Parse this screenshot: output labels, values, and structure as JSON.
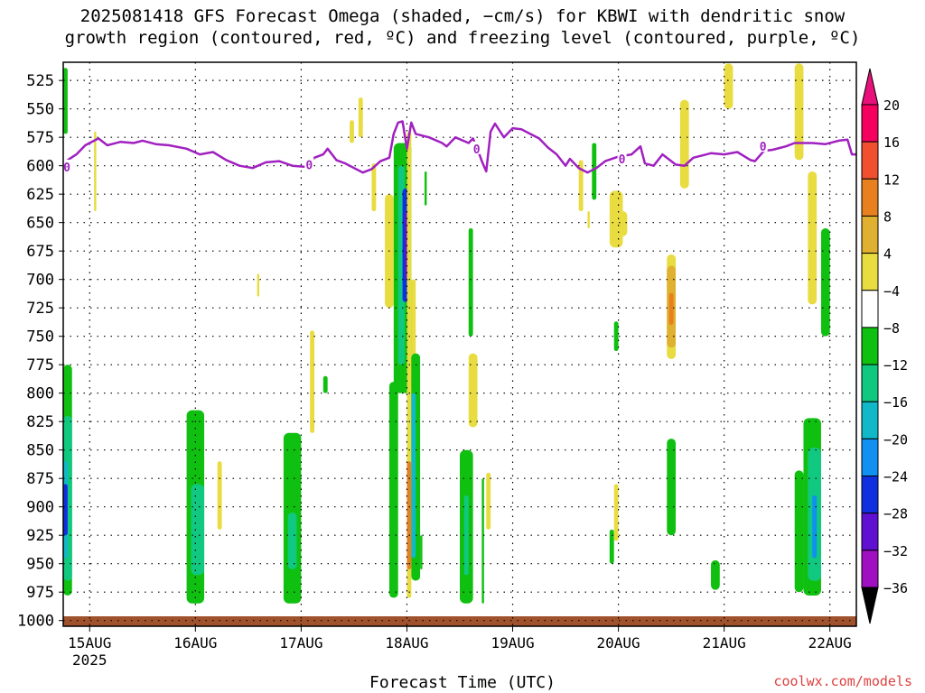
{
  "title_lines": [
    "2025081418 GFS Forecast Omega (shaded, −cm/s) for KBWI with dendritic snow",
    "growth region (contoured, red, ºC) and freezing level (contoured, purple, ºC)"
  ],
  "credit": "coolwx.com/models",
  "chart_data": {
    "type": "heatmap",
    "xlabel": "Forecast Time (UTC)",
    "x_start": "2025-08-14T18:00Z",
    "x_end": "2025-08-22T06:00Z",
    "x_ticks": [
      {
        "time": "2025-08-15T00:00Z",
        "label": "15AUG",
        "sublabel": "2025"
      },
      {
        "time": "2025-08-16T00:00Z",
        "label": "16AUG",
        "sublabel": ""
      },
      {
        "time": "2025-08-17T00:00Z",
        "label": "17AUG",
        "sublabel": ""
      },
      {
        "time": "2025-08-18T00:00Z",
        "label": "18AUG",
        "sublabel": ""
      },
      {
        "time": "2025-08-19T00:00Z",
        "label": "19AUG",
        "sublabel": ""
      },
      {
        "time": "2025-08-20T00:00Z",
        "label": "20AUG",
        "sublabel": ""
      },
      {
        "time": "2025-08-21T00:00Z",
        "label": "21AUG",
        "sublabel": ""
      },
      {
        "time": "2025-08-22T00:00Z",
        "label": "22AUG",
        "sublabel": ""
      }
    ],
    "y_ticks": [
      "525",
      "550",
      "575",
      "600",
      "625",
      "650",
      "675",
      "700",
      "725",
      "750",
      "775",
      "800",
      "825",
      "850",
      "875",
      "900",
      "925",
      "950",
      "975",
      "1000"
    ],
    "ylim_hpa": [
      509,
      1005
    ],
    "y_reversed": true,
    "grid": true,
    "colorbar": {
      "labels": [
        "20",
        "16",
        "12",
        "8",
        "4",
        "−4",
        "−8",
        "−12",
        "−16",
        "−20",
        "−24",
        "−28",
        "−32",
        "−36"
      ],
      "colors": [
        "#f60060",
        "#f05030",
        "#e88020",
        "#e0b030",
        "#e8dc40",
        "#ffffff",
        "#10c010",
        "#10c880",
        "#10b8c8",
        "#1090f0",
        "#1030e0",
        "#6010d0",
        "#a010c0",
        "#a8a8a8"
      ],
      "top_arrow_color": "#e8107a",
      "bottom_arrow_color": "#000000"
    },
    "freezing_level": {
      "name": "0",
      "color": "#a020c0",
      "points": [
        [
          "2025-08-14T18:00Z",
          601
        ],
        [
          "2025-08-14T19:00Z",
          595
        ],
        [
          "2025-08-14T21:00Z",
          590
        ],
        [
          "2025-08-14T23:00Z",
          582
        ],
        [
          "2025-08-15T02:00Z",
          576
        ],
        [
          "2025-08-15T04:00Z",
          582
        ],
        [
          "2025-08-15T07:00Z",
          579
        ],
        [
          "2025-08-15T10:00Z",
          580
        ],
        [
          "2025-08-15T12:00Z",
          578
        ],
        [
          "2025-08-15T15:00Z",
          581
        ],
        [
          "2025-08-15T18:00Z",
          582
        ],
        [
          "2025-08-15T22:00Z",
          585
        ],
        [
          "2025-08-16T01:00Z",
          590
        ],
        [
          "2025-08-16T04:00Z",
          588
        ],
        [
          "2025-08-16T07:00Z",
          595
        ],
        [
          "2025-08-16T10:00Z",
          600
        ],
        [
          "2025-08-16T13:00Z",
          602
        ],
        [
          "2025-08-16T16:00Z",
          597
        ],
        [
          "2025-08-16T19:00Z",
          596
        ],
        [
          "2025-08-16T22:00Z",
          600
        ],
        [
          "2025-08-17T01:00Z",
          601
        ],
        [
          "2025-08-17T03:00Z",
          593
        ],
        [
          "2025-08-17T05:00Z",
          590
        ],
        [
          "2025-08-17T06:00Z",
          585
        ],
        [
          "2025-08-17T08:00Z",
          595
        ],
        [
          "2025-08-17T10:00Z",
          598
        ],
        [
          "2025-08-17T12:00Z",
          602
        ],
        [
          "2025-08-17T14:00Z",
          606
        ],
        [
          "2025-08-17T16:00Z",
          603
        ],
        [
          "2025-08-17T18:00Z",
          596
        ],
        [
          "2025-08-17T20:00Z",
          593
        ],
        [
          "2025-08-17T21:00Z",
          572
        ],
        [
          "2025-08-17T22:00Z",
          562
        ],
        [
          "2025-08-17T23:00Z",
          561
        ],
        [
          "2025-08-18T00:00Z",
          585
        ],
        [
          "2025-08-18T01:00Z",
          562
        ],
        [
          "2025-08-18T02:00Z",
          572
        ],
        [
          "2025-08-18T05:00Z",
          575
        ],
        [
          "2025-08-18T08:00Z",
          580
        ],
        [
          "2025-08-18T09:00Z",
          583
        ],
        [
          "2025-08-18T11:00Z",
          575
        ],
        [
          "2025-08-18T14:00Z",
          580
        ],
        [
          "2025-08-18T15:00Z",
          576
        ],
        [
          "2025-08-18T16:00Z",
          585
        ],
        [
          "2025-08-18T17:00Z",
          596
        ],
        [
          "2025-08-18T18:00Z",
          605
        ],
        [
          "2025-08-18T19:00Z",
          570
        ],
        [
          "2025-08-18T20:00Z",
          563
        ],
        [
          "2025-08-18T22:00Z",
          575
        ],
        [
          "2025-08-19T00:00Z",
          567
        ],
        [
          "2025-08-19T02:00Z",
          568
        ],
        [
          "2025-08-19T04:00Z",
          572
        ],
        [
          "2025-08-19T06:00Z",
          576
        ],
        [
          "2025-08-19T08:00Z",
          584
        ],
        [
          "2025-08-19T10:00Z",
          590
        ],
        [
          "2025-08-19T12:00Z",
          600
        ],
        [
          "2025-08-19T13:00Z",
          594
        ],
        [
          "2025-08-19T15:00Z",
          602
        ],
        [
          "2025-08-19T17:00Z",
          606
        ],
        [
          "2025-08-19T19:00Z",
          602
        ],
        [
          "2025-08-19T21:00Z",
          596
        ],
        [
          "2025-08-20T00:00Z",
          592
        ],
        [
          "2025-08-20T03:00Z",
          590
        ],
        [
          "2025-08-20T05:00Z",
          583
        ],
        [
          "2025-08-20T06:00Z",
          598
        ],
        [
          "2025-08-20T08:00Z",
          600
        ],
        [
          "2025-08-20T10:00Z",
          590
        ],
        [
          "2025-08-20T13:00Z",
          599
        ],
        [
          "2025-08-20T15:00Z",
          600
        ],
        [
          "2025-08-20T17:00Z",
          593
        ],
        [
          "2025-08-20T19:00Z",
          591
        ],
        [
          "2025-08-20T21:00Z",
          589
        ],
        [
          "2025-08-21T00:00Z",
          590
        ],
        [
          "2025-08-21T03:00Z",
          588
        ],
        [
          "2025-08-21T06:00Z",
          595
        ],
        [
          "2025-08-21T07:00Z",
          596
        ],
        [
          "2025-08-21T09:00Z",
          587
        ],
        [
          "2025-08-21T11:00Z",
          586
        ],
        [
          "2025-08-21T14:00Z",
          583
        ],
        [
          "2025-08-21T16:00Z",
          580
        ],
        [
          "2025-08-21T20:00Z",
          580
        ],
        [
          "2025-08-21T23:00Z",
          581
        ],
        [
          "2025-08-22T02:00Z",
          578
        ],
        [
          "2025-08-22T04:00Z",
          577
        ],
        [
          "2025-08-22T05:00Z",
          590
        ],
        [
          "2025-08-22T06:00Z",
          590
        ]
      ],
      "labels": [
        [
          "2025-08-14T18:00Z",
          601
        ],
        [
          "2025-08-17T01:00Z",
          599
        ],
        [
          "2025-08-18T15:00Z",
          585
        ],
        [
          "2025-08-20T00:00Z",
          594
        ],
        [
          "2025-08-21T08:00Z",
          583
        ]
      ]
    },
    "omega_cells": [
      {
        "t0": "2025-08-14T18:00Z",
        "t1": "2025-08-14T19:00Z",
        "p0": 514,
        "p1": 572,
        "c": "#10c010"
      },
      {
        "t0": "2025-08-14T18:00Z",
        "t1": "2025-08-14T20:00Z",
        "p0": 775,
        "p1": 978,
        "c": "#10c010"
      },
      {
        "t0": "2025-08-14T18:00Z",
        "t1": "2025-08-14T20:00Z",
        "p0": 820,
        "p1": 965,
        "c": "#10c880"
      },
      {
        "t0": "2025-08-14T18:00Z",
        "t1": "2025-08-14T19:00Z",
        "p0": 860,
        "p1": 945,
        "c": "#10b8c8"
      },
      {
        "t0": "2025-08-14T18:00Z",
        "t1": "2025-08-14T19:00Z",
        "p0": 880,
        "p1": 925,
        "c": "#1030e0"
      },
      {
        "t0": "2025-08-15T01:00Z",
        "t1": "2025-08-15T01:30Z",
        "p0": 570,
        "p1": 640,
        "c": "#e8dc40"
      },
      {
        "t0": "2025-08-15T22:00Z",
        "t1": "2025-08-16T02:00Z",
        "p0": 815,
        "p1": 985,
        "c": "#10c010"
      },
      {
        "t0": "2025-08-15T23:00Z",
        "t1": "2025-08-16T02:00Z",
        "p0": 880,
        "p1": 960,
        "c": "#10c880"
      },
      {
        "t0": "2025-08-16T05:00Z",
        "t1": "2025-08-16T06:00Z",
        "p0": 860,
        "p1": 920,
        "c": "#e8dc40"
      },
      {
        "t0": "2025-08-16T14:00Z",
        "t1": "2025-08-16T14:30Z",
        "p0": 695,
        "p1": 715,
        "c": "#e8dc40"
      },
      {
        "t0": "2025-08-16T20:00Z",
        "t1": "2025-08-17T00:00Z",
        "p0": 835,
        "p1": 985,
        "c": "#10c010"
      },
      {
        "t0": "2025-08-16T21:00Z",
        "t1": "2025-08-16T23:00Z",
        "p0": 905,
        "p1": 955,
        "c": "#10c880"
      },
      {
        "t0": "2025-08-17T02:00Z",
        "t1": "2025-08-17T03:00Z",
        "p0": 745,
        "p1": 835,
        "c": "#e8dc40"
      },
      {
        "t0": "2025-08-17T05:00Z",
        "t1": "2025-08-17T06:00Z",
        "p0": 785,
        "p1": 800,
        "c": "#10c010"
      },
      {
        "t0": "2025-08-17T11:00Z",
        "t1": "2025-08-17T12:00Z",
        "p0": 560,
        "p1": 580,
        "c": "#e8dc40"
      },
      {
        "t0": "2025-08-17T13:00Z",
        "t1": "2025-08-17T14:00Z",
        "p0": 540,
        "p1": 575,
        "c": "#e8dc40"
      },
      {
        "t0": "2025-08-17T16:00Z",
        "t1": "2025-08-17T17:00Z",
        "p0": 598,
        "p1": 640,
        "c": "#e8dc40"
      },
      {
        "t0": "2025-08-17T19:00Z",
        "t1": "2025-08-17T21:00Z",
        "p0": 625,
        "p1": 725,
        "c": "#e8dc40"
      },
      {
        "t0": "2025-08-17T20:00Z",
        "t1": "2025-08-17T22:00Z",
        "p0": 790,
        "p1": 980,
        "c": "#10c010"
      },
      {
        "t0": "2025-08-17T21:00Z",
        "t1": "2025-08-18T01:00Z",
        "p0": 580,
        "p1": 800,
        "c": "#10c010"
      },
      {
        "t0": "2025-08-17T22:00Z",
        "t1": "2025-08-17T23:30Z",
        "p0": 600,
        "p1": 775,
        "c": "#10c880"
      },
      {
        "t0": "2025-08-17T23:00Z",
        "t1": "2025-08-18T00:30Z",
        "p0": 620,
        "p1": 720,
        "c": "#1030e0"
      },
      {
        "t0": "2025-08-17T23:30Z",
        "t1": "2025-08-18T00:30Z",
        "p0": 640,
        "p1": 700,
        "c": "#6010d0"
      },
      {
        "t0": "2025-08-18T00:00Z",
        "t1": "2025-08-18T01:00Z",
        "p0": 570,
        "p1": 980,
        "c": "#e8dc40"
      },
      {
        "t0": "2025-08-18T00:00Z",
        "t1": "2025-08-18T01:00Z",
        "p0": 860,
        "p1": 955,
        "c": "#e88020"
      },
      {
        "t0": "2025-08-18T01:00Z",
        "t1": "2025-08-18T02:00Z",
        "p0": 700,
        "p1": 880,
        "c": "#e8dc40"
      },
      {
        "t0": "2025-08-18T01:00Z",
        "t1": "2025-08-18T03:00Z",
        "p0": 765,
        "p1": 965,
        "c": "#10c010"
      },
      {
        "t0": "2025-08-18T01:00Z",
        "t1": "2025-08-18T02:00Z",
        "p0": 800,
        "p1": 945,
        "c": "#10b8c8"
      },
      {
        "t0": "2025-08-18T03:00Z",
        "t1": "2025-08-18T03:30Z",
        "p0": 925,
        "p1": 955,
        "c": "#10c010"
      },
      {
        "t0": "2025-08-18T04:00Z",
        "t1": "2025-08-18T04:30Z",
        "p0": 605,
        "p1": 635,
        "c": "#10c010"
      },
      {
        "t0": "2025-08-18T12:00Z",
        "t1": "2025-08-18T15:00Z",
        "p0": 850,
        "p1": 985,
        "c": "#10c010"
      },
      {
        "t0": "2025-08-18T13:00Z",
        "t1": "2025-08-18T14:00Z",
        "p0": 890,
        "p1": 960,
        "c": "#10c880"
      },
      {
        "t0": "2025-08-18T14:00Z",
        "t1": "2025-08-18T15:00Z",
        "p0": 655,
        "p1": 750,
        "c": "#10c010"
      },
      {
        "t0": "2025-08-18T14:00Z",
        "t1": "2025-08-18T16:00Z",
        "p0": 765,
        "p1": 830,
        "c": "#e8dc40"
      },
      {
        "t0": "2025-08-18T17:00Z",
        "t1": "2025-08-18T17:30Z",
        "p0": 875,
        "p1": 985,
        "c": "#10c010"
      },
      {
        "t0": "2025-08-18T18:00Z",
        "t1": "2025-08-18T19:00Z",
        "p0": 870,
        "p1": 920,
        "c": "#e8dc40"
      },
      {
        "t0": "2025-08-19T15:00Z",
        "t1": "2025-08-19T16:00Z",
        "p0": 595,
        "p1": 640,
        "c": "#e8dc40"
      },
      {
        "t0": "2025-08-19T17:00Z",
        "t1": "2025-08-19T17:30Z",
        "p0": 640,
        "p1": 655,
        "c": "#e8dc40"
      },
      {
        "t0": "2025-08-19T18:00Z",
        "t1": "2025-08-19T19:00Z",
        "p0": 580,
        "p1": 630,
        "c": "#10c010"
      },
      {
        "t0": "2025-08-19T22:00Z",
        "t1": "2025-08-20T01:00Z",
        "p0": 622,
        "p1": 672,
        "c": "#e8dc40"
      },
      {
        "t0": "2025-08-20T00:00Z",
        "t1": "2025-08-20T02:00Z",
        "p0": 640,
        "p1": 662,
        "c": "#e8dc40"
      },
      {
        "t0": "2025-08-19T22:00Z",
        "t1": "2025-08-19T23:00Z",
        "p0": 920,
        "p1": 950,
        "c": "#10c010"
      },
      {
        "t0": "2025-08-19T23:00Z",
        "t1": "2025-08-20T00:00Z",
        "p0": 880,
        "p1": 930,
        "c": "#e8dc40"
      },
      {
        "t0": "2025-08-19T23:00Z",
        "t1": "2025-08-20T00:00Z",
        "p0": 737,
        "p1": 763,
        "c": "#10c010"
      },
      {
        "t0": "2025-08-20T11:00Z",
        "t1": "2025-08-20T13:00Z",
        "p0": 678,
        "p1": 770,
        "c": "#e8dc40"
      },
      {
        "t0": "2025-08-20T11:00Z",
        "t1": "2025-08-20T13:00Z",
        "p0": 688,
        "p1": 760,
        "c": "#e0b030"
      },
      {
        "t0": "2025-08-20T11:30Z",
        "t1": "2025-08-20T12:30Z",
        "p0": 712,
        "p1": 740,
        "c": "#e88020"
      },
      {
        "t0": "2025-08-20T11:00Z",
        "t1": "2025-08-20T13:00Z",
        "p0": 840,
        "p1": 925,
        "c": "#10c010"
      },
      {
        "t0": "2025-08-20T14:00Z",
        "t1": "2025-08-20T16:00Z",
        "p0": 542,
        "p1": 620,
        "c": "#e8dc40"
      },
      {
        "t0": "2025-08-20T21:00Z",
        "t1": "2025-08-20T23:00Z",
        "p0": 947,
        "p1": 973,
        "c": "#10c010"
      },
      {
        "t0": "2025-08-21T00:00Z",
        "t1": "2025-08-21T02:00Z",
        "p0": 510,
        "p1": 550,
        "c": "#e8dc40"
      },
      {
        "t0": "2025-08-21T16:00Z",
        "t1": "2025-08-21T18:00Z",
        "p0": 510,
        "p1": 595,
        "c": "#e8dc40"
      },
      {
        "t0": "2025-08-21T16:00Z",
        "t1": "2025-08-21T18:00Z",
        "p0": 868,
        "p1": 975,
        "c": "#10c010"
      },
      {
        "t0": "2025-08-21T18:00Z",
        "t1": "2025-08-21T22:00Z",
        "p0": 822,
        "p1": 978,
        "c": "#10c010"
      },
      {
        "t0": "2025-08-21T19:00Z",
        "t1": "2025-08-21T22:00Z",
        "p0": 848,
        "p1": 965,
        "c": "#10c880"
      },
      {
        "t0": "2025-08-21T20:00Z",
        "t1": "2025-08-21T21:00Z",
        "p0": 890,
        "p1": 945,
        "c": "#1090f0"
      },
      {
        "t0": "2025-08-21T19:00Z",
        "t1": "2025-08-21T21:00Z",
        "p0": 605,
        "p1": 722,
        "c": "#e8dc40"
      },
      {
        "t0": "2025-08-21T22:00Z",
        "t1": "2025-08-22T00:00Z",
        "p0": 655,
        "p1": 750,
        "c": "#10c010"
      }
    ]
  }
}
